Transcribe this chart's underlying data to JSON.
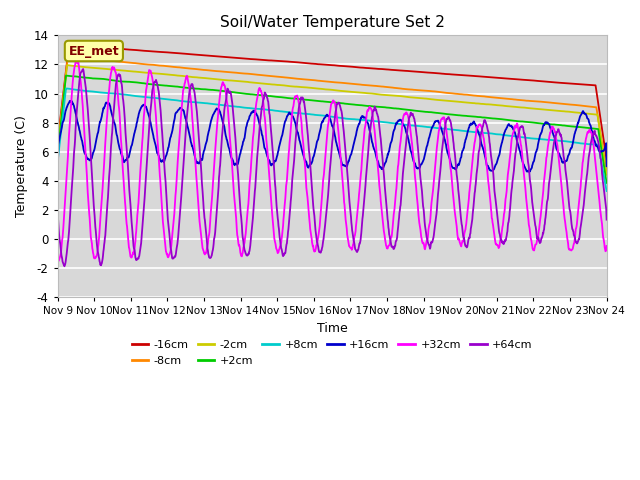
{
  "title": "Soil/Water Temperature Set 2",
  "xlabel": "Time",
  "ylabel": "Temperature (C)",
  "ylim": [
    -4,
    14
  ],
  "yticks": [
    -4,
    -2,
    0,
    2,
    4,
    6,
    8,
    10,
    12,
    14
  ],
  "xlim": [
    0,
    15
  ],
  "annotation": "EE_met",
  "series": [
    {
      "label": "-16cm",
      "color": "#cc0000"
    },
    {
      "label": "-8cm",
      "color": "#ff8800"
    },
    {
      "label": "-2cm",
      "color": "#cccc00"
    },
    {
      "label": "+2cm",
      "color": "#00cc00"
    },
    {
      "label": "+8cm",
      "color": "#00cccc"
    },
    {
      "label": "+16cm",
      "color": "#0000cc"
    },
    {
      "label": "+32cm",
      "color": "#ff00ff"
    },
    {
      "label": "+64cm",
      "color": "#9900cc"
    }
  ],
  "xtick_labels": [
    "Nov 9",
    "Nov 10",
    "Nov 11",
    "Nov 12",
    "Nov 13",
    "Nov 14",
    "Nov 15",
    "Nov 16",
    "Nov 17",
    "Nov 18",
    "Nov 19",
    "Nov 20",
    "Nov 21",
    "Nov 22",
    "Nov 23",
    "Nov 24"
  ],
  "xtick_positions": [
    0,
    1,
    2,
    3,
    4,
    5,
    6,
    7,
    8,
    9,
    10,
    11,
    12,
    13,
    14,
    15
  ]
}
